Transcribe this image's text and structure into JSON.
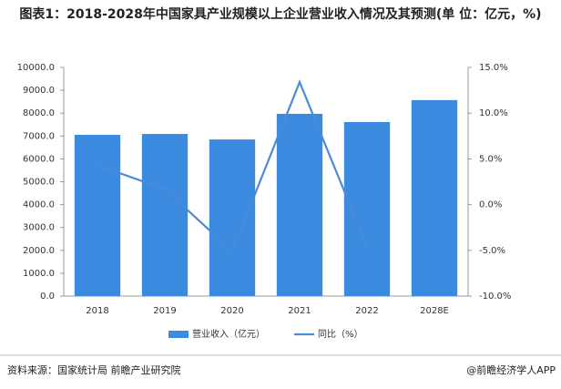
{
  "chart_data": {
    "type": "bar",
    "title": "图表1：2018-2028年中国家具产业规模以上企业营业收入情况及其预测(单 位：亿元，%)",
    "categories": [
      "2018",
      "2019",
      "2020",
      "2021",
      "2022",
      "2028E"
    ],
    "series": [
      {
        "name": "营业收入（亿元）",
        "type": "bar",
        "color": "#3a8ae0",
        "values": [
          7050,
          7090,
          6850,
          7970,
          7610,
          8570
        ]
      },
      {
        "name": "同比（%）",
        "type": "line",
        "axis": "y2",
        "color": "#4a8ad8",
        "values": [
          4.3,
          1.7,
          -5.1,
          13.4,
          -4.6,
          null
        ]
      }
    ],
    "ylim": [
      0,
      10000
    ],
    "yticks": [
      {
        "value": 0,
        "label": "0.0"
      },
      {
        "value": 1000,
        "label": "1000.0"
      },
      {
        "value": 2000,
        "label": "2000.0"
      },
      {
        "value": 3000,
        "label": "3000.0"
      },
      {
        "value": 4000,
        "label": "4000.0"
      },
      {
        "value": 5000,
        "label": "5000.0"
      },
      {
        "value": 6000,
        "label": "6000.0"
      },
      {
        "value": 7000,
        "label": "7000.0"
      },
      {
        "value": 8000,
        "label": "8000.0"
      },
      {
        "value": 9000,
        "label": "9000.0"
      },
      {
        "value": 10000,
        "label": "10000.0"
      }
    ],
    "y2lim": [
      -10,
      15
    ],
    "y2ticks": [
      {
        "value": -10,
        "label": "-10.0%"
      },
      {
        "value": -5,
        "label": "-5.0%"
      },
      {
        "value": 0,
        "label": "0.0%"
      },
      {
        "value": 5,
        "label": "5.0%"
      },
      {
        "value": 10,
        "label": "10.0%"
      },
      {
        "value": 15,
        "label": "15.0%"
      }
    ],
    "legend": "bottom",
    "source": "资料来源：国家统计局 前瞻产业研究院",
    "credit": "@前瞻经济学人APP"
  }
}
